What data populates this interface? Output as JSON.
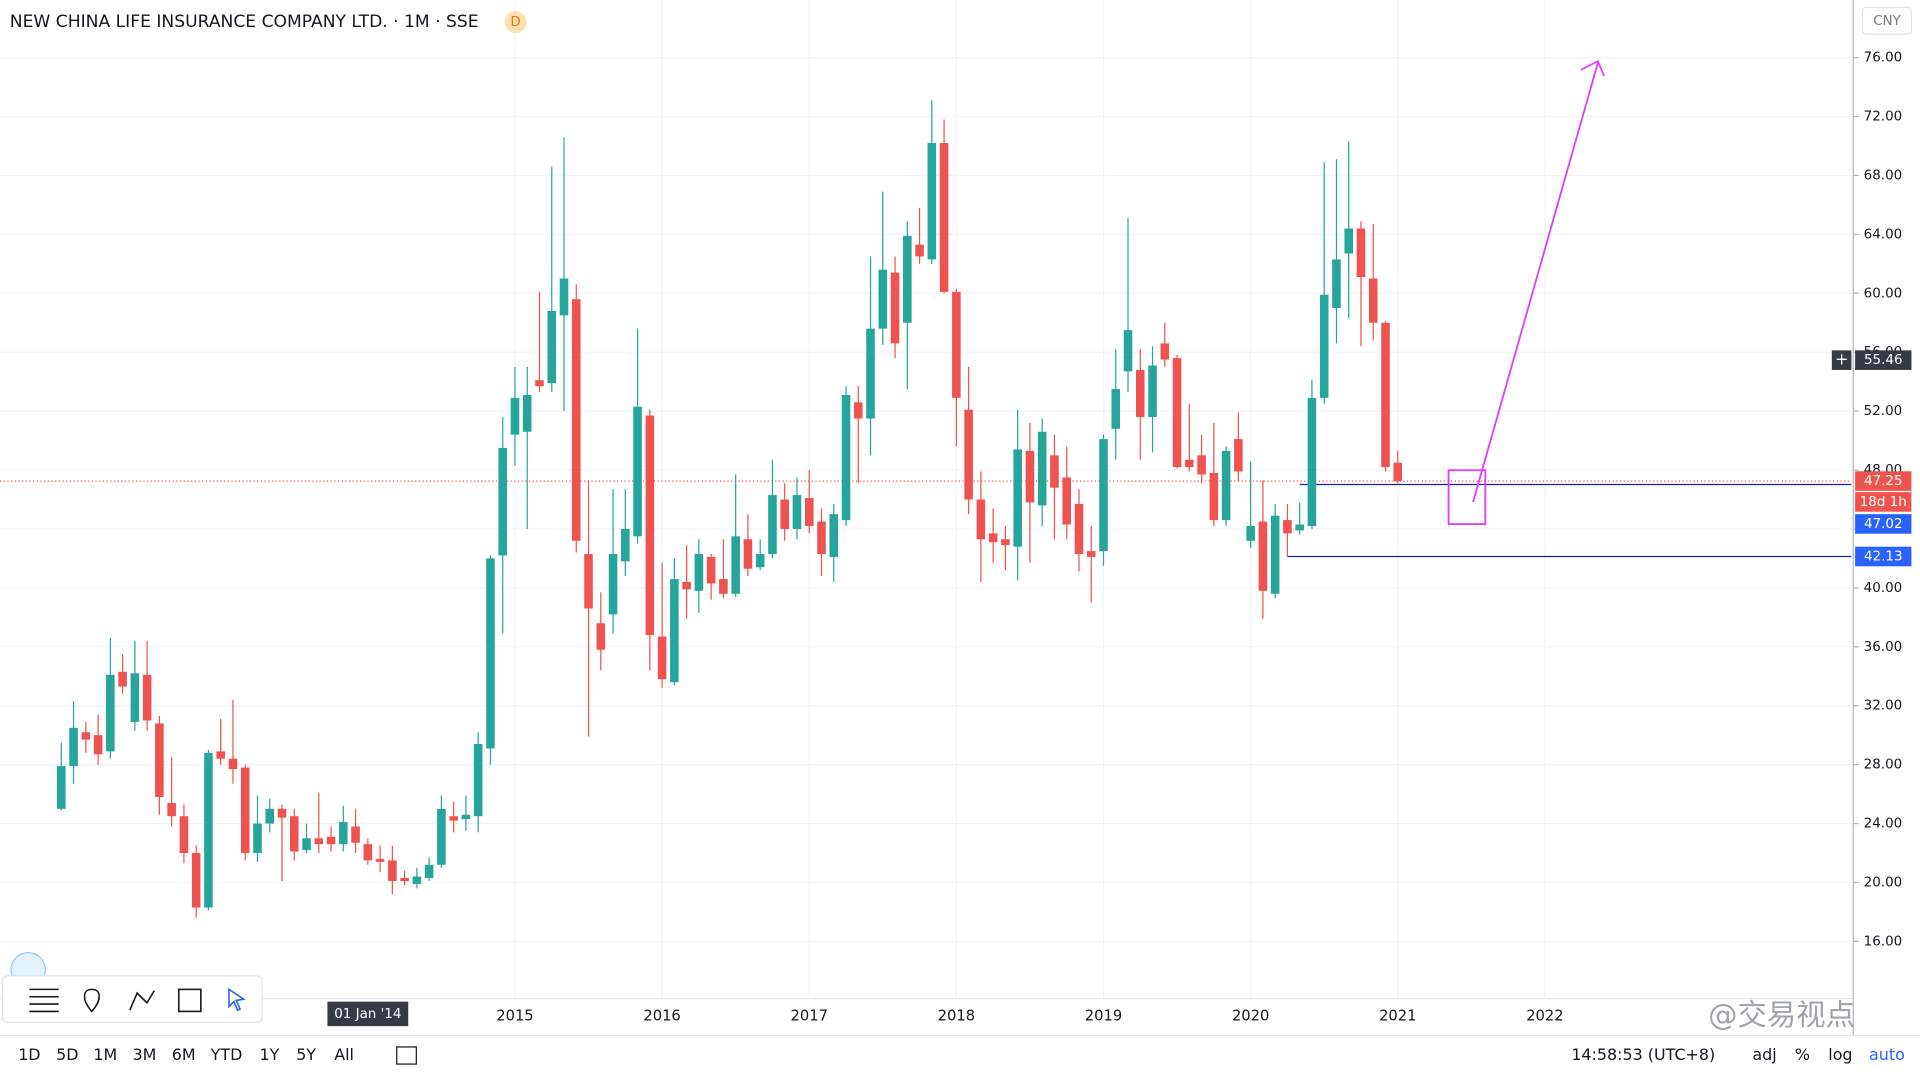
{
  "header": {
    "title": "NEW CHINA LIFE INSURANCE COMPANY LTD. · 1M · SSE",
    "badge": "D"
  },
  "chart_data": {
    "type": "candlestick",
    "x": [
      "2011-12",
      "2012-01",
      "2012-02",
      "2012-03",
      "2012-04",
      "2012-05",
      "2012-06",
      "2012-07",
      "2012-08",
      "2012-09",
      "2012-10",
      "2012-11",
      "2012-12",
      "2013-01",
      "2013-02",
      "2013-03",
      "2013-04",
      "2013-05",
      "2013-06",
      "2013-07",
      "2013-08",
      "2013-09",
      "2013-10",
      "2013-11",
      "2013-12",
      "2014-01",
      "2014-02",
      "2014-03",
      "2014-04",
      "2014-05",
      "2014-06",
      "2014-07",
      "2014-08",
      "2014-09",
      "2014-10",
      "2014-11",
      "2014-12",
      "2015-01",
      "2015-02",
      "2015-03",
      "2015-04",
      "2015-05",
      "2015-06",
      "2015-07",
      "2015-08",
      "2015-09",
      "2015-10",
      "2015-11",
      "2015-12",
      "2016-01",
      "2016-02",
      "2016-03",
      "2016-04",
      "2016-05",
      "2016-06",
      "2016-07",
      "2016-08",
      "2016-09",
      "2016-10",
      "2016-11",
      "2016-12",
      "2017-01",
      "2017-02",
      "2017-03",
      "2017-04",
      "2017-05",
      "2017-06",
      "2017-07",
      "2017-08",
      "2017-09",
      "2017-10",
      "2017-11",
      "2017-12",
      "2018-01",
      "2018-02",
      "2018-03",
      "2018-04",
      "2018-05",
      "2018-06",
      "2018-07",
      "2018-08",
      "2018-09",
      "2018-10",
      "2018-11",
      "2018-12",
      "2019-01",
      "2019-02",
      "2019-03",
      "2019-04",
      "2019-05",
      "2019-06",
      "2019-07",
      "2019-08",
      "2019-09",
      "2019-10",
      "2019-11",
      "2019-12",
      "2020-01",
      "2020-02",
      "2020-03",
      "2020-04",
      "2020-05",
      "2020-06",
      "2020-07",
      "2020-08",
      "2020-09",
      "2020-10",
      "2020-11",
      "2020-12",
      "2021-01"
    ],
    "open": [
      25.0,
      27.9,
      30.2,
      30.0,
      28.9,
      34.3,
      30.9,
      34.1,
      30.8,
      25.4,
      24.5,
      22.0,
      18.3,
      28.9,
      28.4,
      27.8,
      22.0,
      24.0,
      25.0,
      24.5,
      22.2,
      23.0,
      23.1,
      22.6,
      23.8,
      22.6,
      21.6,
      21.5,
      20.3,
      19.9,
      20.3,
      21.2,
      24.5,
      24.3,
      24.5,
      29.1,
      42.2,
      50.4,
      50.6,
      54.1,
      53.9,
      58.5,
      59.6,
      42.3,
      37.6,
      38.2,
      41.8,
      43.5,
      51.7,
      36.7,
      33.6,
      40.4,
      39.8,
      42.1,
      40.6,
      39.6,
      43.3,
      41.4,
      42.3,
      46.0,
      44.0,
      46.1,
      44.5,
      42.1,
      44.6,
      52.6,
      51.5,
      57.6,
      61.4,
      58.0,
      63.3,
      62.3,
      70.2,
      60.1,
      52.1,
      46.0,
      43.7,
      43.3,
      42.8,
      49.3,
      45.6,
      49.0,
      47.5,
      45.7,
      42.5,
      42.5,
      50.8,
      54.7,
      54.8,
      51.6,
      56.6,
      55.6,
      48.7,
      49.0,
      47.8,
      44.6,
      50.1,
      43.2,
      44.5,
      39.6,
      44.6,
      43.9,
      44.2,
      52.9,
      59.0,
      62.7,
      64.4,
      61.0,
      58.0,
      48.5
    ],
    "high": [
      29.5,
      32.3,
      30.9,
      31.4,
      36.6,
      35.5,
      36.4,
      36.4,
      31.3,
      28.5,
      25.3,
      22.5,
      29.0,
      31.1,
      32.4,
      28.0,
      25.9,
      25.7,
      25.3,
      25.0,
      24.0,
      26.1,
      23.8,
      25.2,
      25.0,
      23.0,
      22.5,
      22.5,
      20.8,
      21.0,
      21.7,
      25.9,
      25.5,
      25.9,
      30.2,
      42.2,
      51.6,
      55.0,
      55.0,
      60.1,
      68.6,
      70.6,
      60.6,
      47.3,
      39.7,
      46.7,
      46.7,
      57.6,
      52.1,
      41.7,
      42.0,
      42.9,
      43.3,
      42.3,
      43.3,
      47.7,
      45.0,
      43.3,
      48.7,
      47.1,
      47.5,
      48.0,
      45.4,
      45.7,
      53.7,
      53.7,
      62.5,
      66.9,
      62.5,
      64.9,
      65.8,
      73.1,
      71.8,
      60.3,
      55.0,
      47.9,
      45.4,
      44.2,
      52.1,
      51.2,
      51.5,
      50.4,
      49.6,
      46.7,
      44.2,
      50.4,
      56.2,
      65.1,
      56.2,
      56.4,
      58.0,
      55.8,
      52.5,
      50.4,
      51.2,
      49.6,
      51.9,
      48.6,
      47.3,
      45.7,
      45.7,
      45.8,
      54.1,
      68.9,
      69.1,
      70.3,
      64.9,
      64.7,
      58.1,
      49.3
    ],
    "low": [
      24.9,
      26.7,
      28.8,
      28.0,
      28.4,
      32.8,
      30.3,
      30.3,
      24.6,
      23.8,
      21.3,
      17.6,
      18.1,
      28.0,
      26.7,
      21.5,
      21.4,
      23.4,
      20.1,
      21.5,
      22.0,
      22.0,
      22.1,
      22.1,
      22.0,
      21.2,
      20.7,
      19.2,
      19.8,
      19.6,
      20.1,
      21.0,
      23.4,
      23.5,
      23.4,
      28.0,
      36.9,
      48.3,
      44.0,
      53.3,
      53.3,
      52.0,
      42.4,
      29.9,
      34.4,
      36.9,
      40.8,
      43.0,
      34.4,
      33.2,
      33.4,
      37.9,
      38.3,
      39.2,
      39.3,
      39.4,
      40.8,
      41.2,
      42.0,
      43.2,
      43.3,
      43.7,
      40.8,
      40.4,
      44.2,
      47.1,
      49.0,
      56.5,
      55.6,
      53.5,
      62.0,
      62.0,
      60.0,
      49.6,
      45.0,
      40.4,
      41.7,
      41.2,
      40.5,
      41.7,
      44.2,
      43.3,
      43.3,
      41.1,
      39.0,
      41.5,
      48.7,
      53.3,
      48.7,
      49.2,
      55.0,
      48.1,
      47.9,
      47.1,
      44.2,
      44.2,
      47.2,
      42.7,
      37.9,
      39.3,
      42.1,
      43.6,
      44.0,
      52.5,
      56.6,
      58.3,
      56.4,
      56.8,
      47.9,
      47.1
    ],
    "close": [
      27.9,
      30.5,
      29.7,
      28.7,
      34.1,
      33.3,
      34.2,
      31.0,
      25.8,
      24.5,
      22.0,
      18.3,
      28.8,
      28.4,
      27.7,
      22.0,
      24.0,
      25.0,
      24.4,
      22.1,
      23.0,
      22.6,
      22.6,
      24.1,
      22.7,
      21.5,
      21.4,
      20.1,
      20.1,
      20.4,
      21.2,
      25.0,
      24.2,
      24.6,
      29.4,
      42.0,
      49.5,
      52.9,
      53.1,
      53.7,
      58.8,
      61.0,
      43.2,
      38.6,
      35.8,
      42.3,
      44.0,
      52.3,
      36.8,
      33.8,
      40.6,
      39.9,
      42.3,
      40.3,
      39.6,
      43.5,
      41.3,
      42.3,
      46.3,
      44.0,
      46.3,
      44.2,
      42.3,
      45.0,
      53.1,
      51.5,
      57.6,
      61.6,
      56.6,
      63.9,
      62.5,
      70.2,
      60.1,
      52.9,
      46.0,
      43.3,
      43.1,
      42.9,
      49.4,
      45.8,
      50.6,
      46.8,
      44.3,
      42.3,
      42.1,
      50.1,
      53.5,
      57.5,
      51.6,
      55.1,
      55.5,
      48.2,
      48.2,
      47.7,
      44.6,
      49.3,
      47.9,
      44.2,
      39.8,
      44.9,
      43.7,
      44.3,
      52.9,
      59.9,
      62.3,
      64.4,
      61.1,
      58.0,
      48.2,
      47.25
    ],
    "up_color": "#26a69a",
    "down_color": "#ef5350",
    "xlim": [
      "2011-07",
      "2024-02"
    ],
    "xticks": [
      {
        "value": "2015-01",
        "label": "2015"
      },
      {
        "value": "2016-01",
        "label": "2016"
      },
      {
        "value": "2017-01",
        "label": "2017"
      },
      {
        "value": "2018-01",
        "label": "2018"
      },
      {
        "value": "2019-01",
        "label": "2019"
      },
      {
        "value": "2020-01",
        "label": "2020"
      },
      {
        "value": "2021-01",
        "label": "2021"
      },
      {
        "value": "2022-01",
        "label": "2022"
      }
    ],
    "ylim": [
      12.16,
      79.91
    ],
    "yticks": [
      {
        "value": 16,
        "label": "16.00"
      },
      {
        "value": 20,
        "label": "20.00"
      },
      {
        "value": 24,
        "label": "24.00"
      },
      {
        "value": 28,
        "label": "28.00"
      },
      {
        "value": 32,
        "label": "32.00"
      },
      {
        "value": 36,
        "label": "36.00"
      },
      {
        "value": 40,
        "label": "40.00"
      },
      {
        "value": 44,
        "label": "44.00"
      },
      {
        "value": 48,
        "label": "48.00"
      },
      {
        "value": 52,
        "label": "52.00"
      },
      {
        "value": 56,
        "label": "56.00"
      },
      {
        "value": 60,
        "label": "60.00"
      },
      {
        "value": 64,
        "label": "64.00"
      },
      {
        "value": 68,
        "label": "68.00"
      },
      {
        "value": 72,
        "label": "72.00"
      },
      {
        "value": 76,
        "label": "76.00"
      }
    ],
    "grid": true,
    "log": false,
    "currency": "CNY",
    "last_price": 47.25,
    "countdown": "18d 1h",
    "crosshair": {
      "x": "2014-01",
      "x_label": "01 Jan '14",
      "price": 55.46
    },
    "price_lines": [
      {
        "value": 47.02,
        "from": "2020-05",
        "color": "#1e22aa"
      },
      {
        "value": 42.13,
        "from": "2020-04",
        "color": "#1e22aa"
      }
    ]
  },
  "toolbar": {
    "ranges": [
      "1D",
      "5D",
      "1M",
      "3M",
      "6M",
      "YTD",
      "1Y",
      "5Y",
      "All"
    ],
    "time": "14:58:53 (UTC+8)",
    "options": [
      "adj",
      "%",
      "log",
      "auto"
    ]
  },
  "watermark": "@交易视点"
}
